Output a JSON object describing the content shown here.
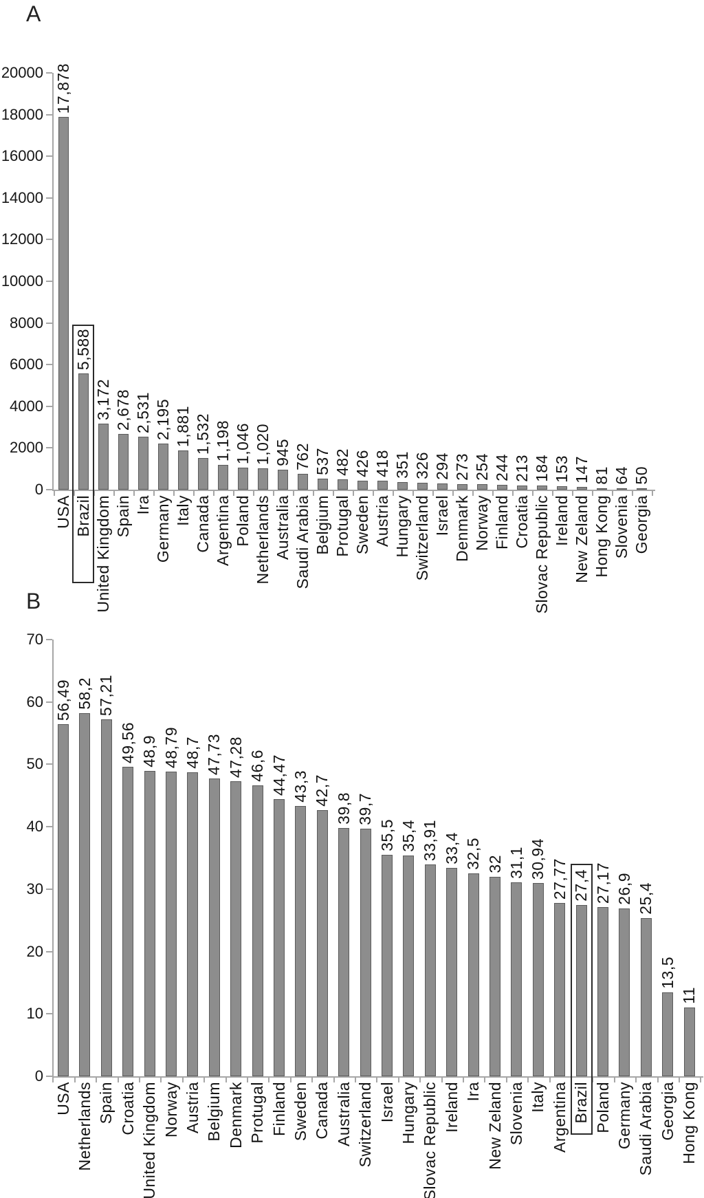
{
  "panels": [
    {
      "letter": "A"
    },
    {
      "letter": "B"
    }
  ],
  "colors": {
    "bar_fill": "#8d8d8d",
    "bar_border": "#5a5a5a",
    "axis": "#a6a6a6",
    "text": "#141414",
    "highlight_box": "#2a2a2a"
  },
  "chart_data": [
    {
      "type": "bar",
      "title": "A",
      "xlabel": "",
      "ylabel": "",
      "ylim": [
        0,
        20000
      ],
      "grid": false,
      "legend": "none",
      "yticks": [
        "0",
        "2000",
        "4000",
        "6000",
        "8000",
        "10000",
        "12000",
        "14000",
        "16000",
        "18000",
        "20000"
      ],
      "highlight_category": "Brazil",
      "categories": [
        "USA",
        "Brazil",
        "United Kingdom",
        "Spain",
        "Ira",
        "Germany",
        "Italy",
        "Canada",
        "Argentina",
        "Poland",
        "Netherlands",
        "Australia",
        "Saudi Arabia",
        "Belgium",
        "Protugal",
        "Sweden",
        "Austria",
        "Hungary",
        "Switzerland",
        "Israel",
        "Denmark",
        "Norway",
        "Finland",
        "Croatia",
        "Slovac Republic",
        "Ireland",
        "New Zeland",
        "Hong Kong",
        "Slovenia",
        "Georgia"
      ],
      "values": [
        17878,
        5588,
        3172,
        2678,
        2531,
        2195,
        1881,
        1532,
        1198,
        1046,
        1020,
        945,
        762,
        537,
        482,
        426,
        418,
        351,
        326,
        294,
        273,
        254,
        244,
        213,
        184,
        153,
        147,
        81,
        64,
        50
      ],
      "value_labels": [
        "17,878",
        "5,588",
        "3,172",
        "2,678",
        "2,531",
        "2,195",
        "1,881",
        "1,532",
        "1,198",
        "1,046",
        "1,020",
        "945",
        "762",
        "537",
        "482",
        "426",
        "418",
        "351",
        "326",
        "294",
        "273",
        "254",
        "244",
        "213",
        "184",
        "153",
        "147",
        "81",
        "64",
        "50"
      ]
    },
    {
      "type": "bar",
      "title": "B",
      "xlabel": "",
      "ylabel": "",
      "ylim": [
        0,
        70
      ],
      "grid": false,
      "legend": "none",
      "yticks": [
        "0",
        "10",
        "20",
        "30",
        "40",
        "50",
        "60",
        "70"
      ],
      "highlight_category": "Brazil",
      "categories": [
        "USA",
        "Netherlands",
        "Spain",
        "Croatia",
        "United Kingdom",
        "Norway",
        "Austria",
        "Belgium",
        "Denmark",
        "Protugal",
        "Finland",
        "Sweden",
        "Canada",
        "Australia",
        "Switzerland",
        "Israel",
        "Hungary",
        "Slovac Republic",
        "Ireland",
        "Ira",
        "New Zeland",
        "Slovenia",
        "Italy",
        "Argentina",
        "Brazil",
        "Poland",
        "Germany",
        "Saudi Arabia",
        "Georgia",
        "Hong Kong"
      ],
      "values": [
        56.49,
        58.2,
        57.21,
        49.56,
        48.9,
        48.79,
        48.7,
        47.73,
        47.28,
        46.6,
        44.47,
        43.3,
        42.7,
        39.8,
        39.7,
        35.5,
        35.4,
        33.91,
        33.4,
        32.5,
        32,
        31.1,
        30.94,
        27.77,
        27.4,
        27.17,
        26.9,
        25.4,
        13.5,
        11
      ],
      "value_labels": [
        "56,49",
        "58,2",
        "57,21",
        "49,56",
        "48,9",
        "48,79",
        "48,7",
        "47,73",
        "47,28",
        "46,6",
        "44,47",
        "43,3",
        "42,7",
        "39,8",
        "39,7",
        "35,5",
        "35,4",
        "33,91",
        "33,4",
        "32,5",
        "32",
        "31,1",
        "30,94",
        "27,77",
        "27,4",
        "27,17",
        "26,9",
        "25,4",
        "13,5",
        "11"
      ]
    }
  ]
}
